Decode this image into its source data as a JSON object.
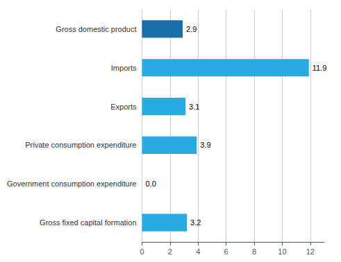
{
  "chart_data": {
    "type": "bar",
    "orientation": "horizontal",
    "categories": [
      "Gross fixed capital formation",
      "Government consumption expenditure",
      "Private consumption expenditure",
      "Exports",
      "Imports",
      "Gross domestic product"
    ],
    "values": [
      3.2,
      0.0,
      3.9,
      3.1,
      11.9,
      2.9
    ],
    "value_labels": [
      "3.2",
      "0.0",
      "3.9",
      "3.1",
      "11.9",
      "2.9"
    ],
    "colors": [
      "#29abe2",
      "#29abe2",
      "#29abe2",
      "#29abe2",
      "#29abe2",
      "#1b6fa8"
    ],
    "xlim": [
      0,
      13
    ],
    "xticks": [
      0,
      2,
      4,
      6,
      8,
      10,
      12
    ],
    "grid": true,
    "data_labels": true
  }
}
